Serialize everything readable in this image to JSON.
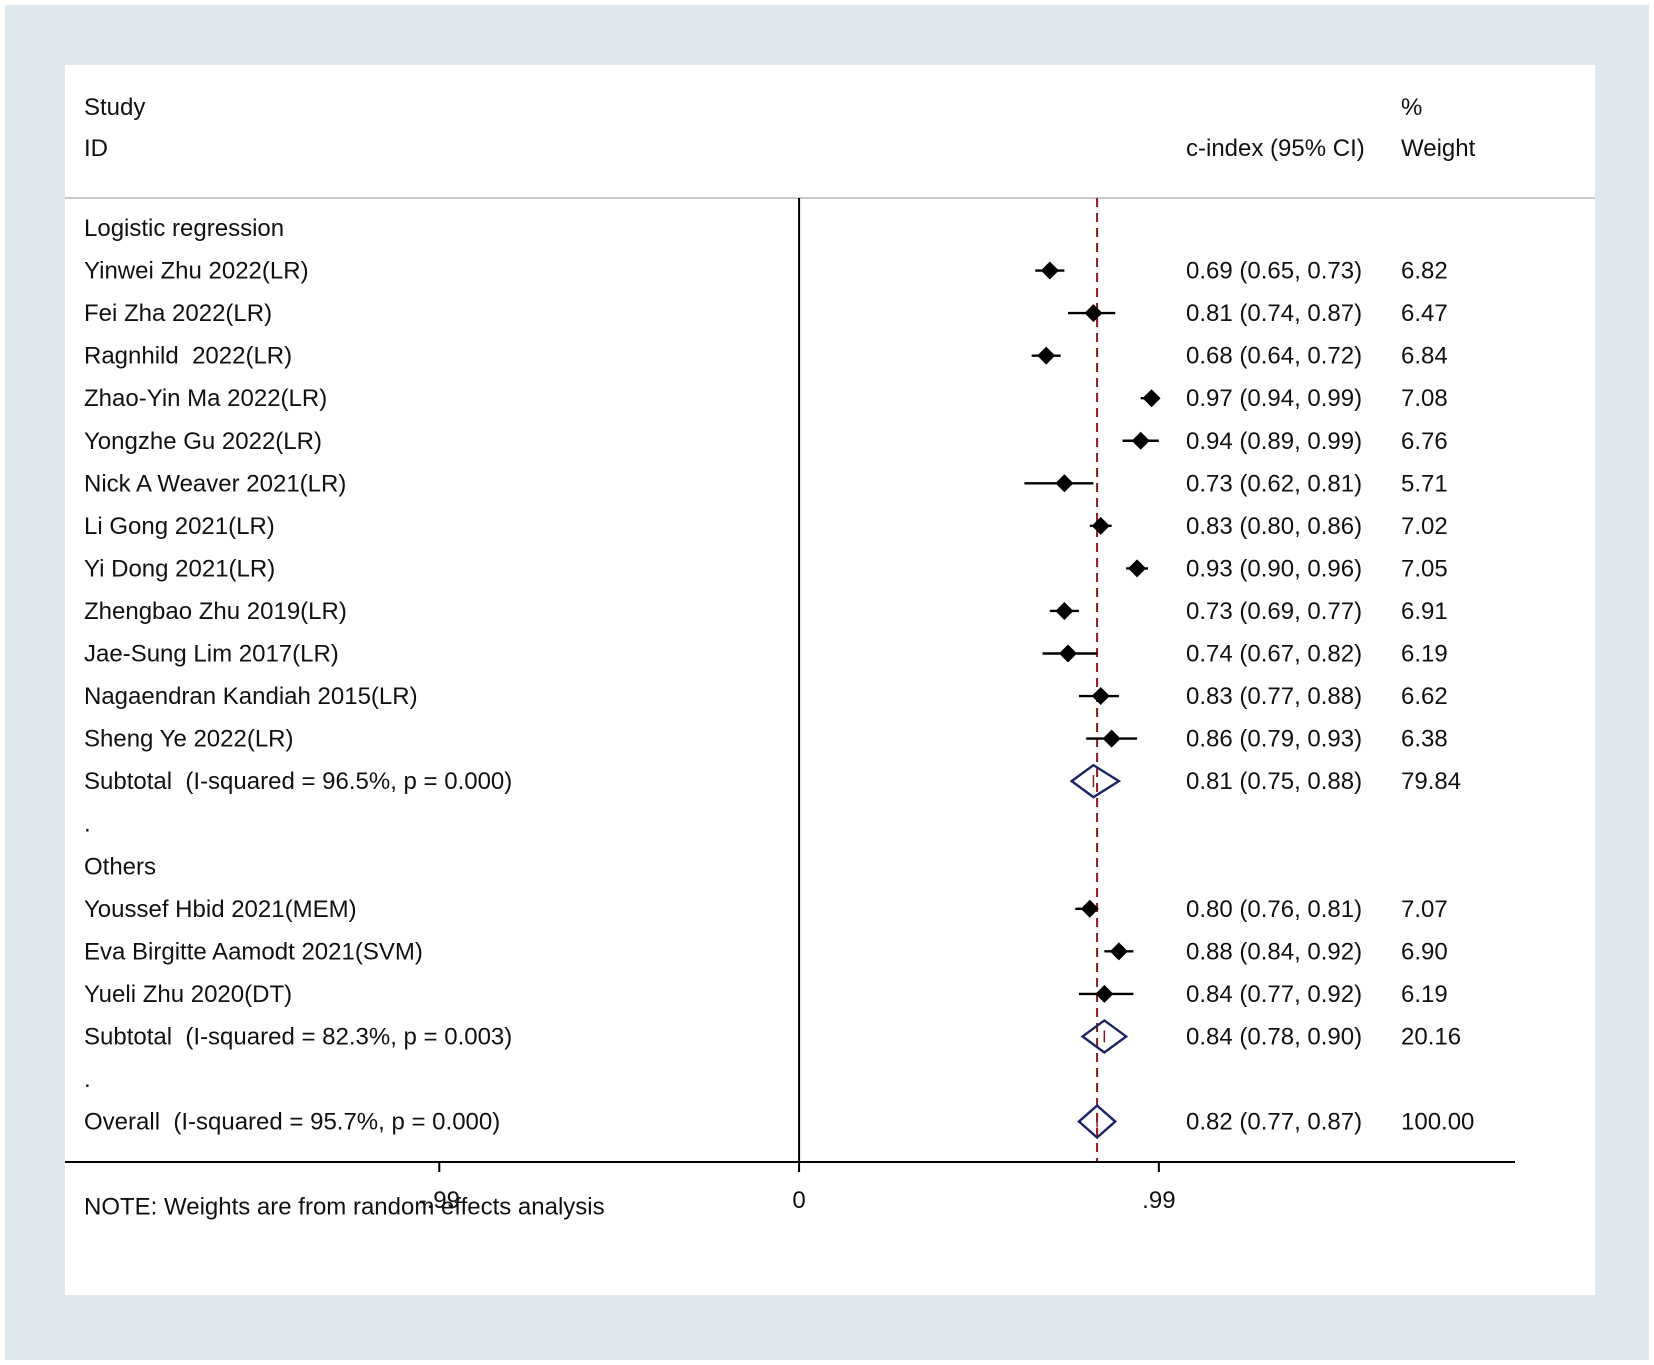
{
  "chart_data": {
    "type": "forest",
    "header": {
      "col1_line1": "Study",
      "col1_line2": "ID",
      "col2_label": "c-index (95% CI)",
      "col3_line1": "%",
      "col3_line2": "Weight"
    },
    "rows": [
      {
        "kind": "group",
        "label": "Logistic regression"
      },
      {
        "kind": "study",
        "label": "Yinwei Zhu 2022(LR)",
        "est": 0.69,
        "lo": 0.65,
        "hi": 0.73,
        "ci_text": "0.69 (0.65, 0.73)",
        "weight": "6.82"
      },
      {
        "kind": "study",
        "label": "Fei Zha 2022(LR)",
        "est": 0.81,
        "lo": 0.74,
        "hi": 0.87,
        "ci_text": "0.81 (0.74, 0.87)",
        "weight": "6.47"
      },
      {
        "kind": "study",
        "label": "Ragnhild  2022(LR)",
        "est": 0.68,
        "lo": 0.64,
        "hi": 0.72,
        "ci_text": "0.68 (0.64, 0.72)",
        "weight": "6.84"
      },
      {
        "kind": "study",
        "label": "Zhao-Yin Ma 2022(LR)",
        "est": 0.97,
        "lo": 0.94,
        "hi": 0.99,
        "ci_text": "0.97 (0.94, 0.99)",
        "weight": "7.08"
      },
      {
        "kind": "study",
        "label": "Yongzhe Gu 2022(LR)",
        "est": 0.94,
        "lo": 0.89,
        "hi": 0.99,
        "ci_text": "0.94 (0.89, 0.99)",
        "weight": "6.76"
      },
      {
        "kind": "study",
        "label": "Nick A Weaver 2021(LR)",
        "est": 0.73,
        "lo": 0.62,
        "hi": 0.81,
        "ci_text": "0.73 (0.62, 0.81)",
        "weight": "5.71"
      },
      {
        "kind": "study",
        "label": "Li Gong 2021(LR)",
        "est": 0.83,
        "lo": 0.8,
        "hi": 0.86,
        "ci_text": "0.83 (0.80, 0.86)",
        "weight": "7.02"
      },
      {
        "kind": "study",
        "label": "Yi Dong 2021(LR)",
        "est": 0.93,
        "lo": 0.9,
        "hi": 0.96,
        "ci_text": "0.93 (0.90, 0.96)",
        "weight": "7.05"
      },
      {
        "kind": "study",
        "label": "Zhengbao Zhu 2019(LR)",
        "est": 0.73,
        "lo": 0.69,
        "hi": 0.77,
        "ci_text": "0.73 (0.69, 0.77)",
        "weight": "6.91"
      },
      {
        "kind": "study",
        "label": "Jae-Sung Lim 2017(LR)",
        "est": 0.74,
        "lo": 0.67,
        "hi": 0.82,
        "ci_text": "0.74 (0.67, 0.82)",
        "weight": "6.19"
      },
      {
        "kind": "study",
        "label": "Nagaendran Kandiah 2015(LR)",
        "est": 0.83,
        "lo": 0.77,
        "hi": 0.88,
        "ci_text": "0.83 (0.77, 0.88)",
        "weight": "6.62"
      },
      {
        "kind": "study",
        "label": "Sheng Ye 2022(LR)",
        "est": 0.86,
        "lo": 0.79,
        "hi": 0.93,
        "ci_text": "0.86 (0.79, 0.93)",
        "weight": "6.38"
      },
      {
        "kind": "subtotal",
        "label": "Subtotal  (I-squared = 96.5%, p = 0.000)",
        "est": 0.81,
        "lo": 0.75,
        "hi": 0.88,
        "ci_text": "0.81 (0.75, 0.88)",
        "weight": "79.84"
      },
      {
        "kind": "spacer",
        "label": "."
      },
      {
        "kind": "group",
        "label": "Others"
      },
      {
        "kind": "study",
        "label": "Youssef Hbid 2021(MEM)",
        "est": 0.8,
        "lo": 0.76,
        "hi": 0.81,
        "ci_text": "0.80 (0.76, 0.81)",
        "weight": "7.07"
      },
      {
        "kind": "study",
        "label": "Eva Birgitte Aamodt 2021(SVM)",
        "est": 0.88,
        "lo": 0.84,
        "hi": 0.92,
        "ci_text": "0.88 (0.84, 0.92)",
        "weight": "6.90"
      },
      {
        "kind": "study",
        "label": "Yueli Zhu 2020(DT)",
        "est": 0.84,
        "lo": 0.77,
        "hi": 0.92,
        "ci_text": "0.84 (0.77, 0.92)",
        "weight": "6.19"
      },
      {
        "kind": "subtotal",
        "label": "Subtotal  (I-squared = 82.3%, p = 0.003)",
        "est": 0.84,
        "lo": 0.78,
        "hi": 0.9,
        "ci_text": "0.84 (0.78, 0.90)",
        "weight": "20.16"
      },
      {
        "kind": "spacer",
        "label": "."
      },
      {
        "kind": "subtotal",
        "label": "Overall  (I-squared = 95.7%, p = 0.000)",
        "est": 0.82,
        "lo": 0.77,
        "hi": 0.87,
        "ci_text": "0.82 (0.77, 0.87)",
        "weight": "100.00"
      },
      {
        "kind": "blank",
        "label": ""
      },
      {
        "kind": "note",
        "label": "NOTE: Weights are from random effects analysis"
      }
    ],
    "overall_line": 0.82,
    "null_line": 0,
    "x_ticks": [
      {
        "value": -0.99,
        "label": "-.99"
      },
      {
        "value": 0,
        "label": "0"
      },
      {
        "value": 0.99,
        "label": ".99"
      }
    ],
    "xlim": [
      -2.02,
      1.97
    ],
    "colors": {
      "outer_background": "#dfe8ed",
      "plot_background": "#ffffff",
      "text": "#111111",
      "marker": "#000000",
      "diamond": "#1a2466",
      "overall_line": "#8b1a1a",
      "header_rule": "#c9c9c9"
    }
  }
}
